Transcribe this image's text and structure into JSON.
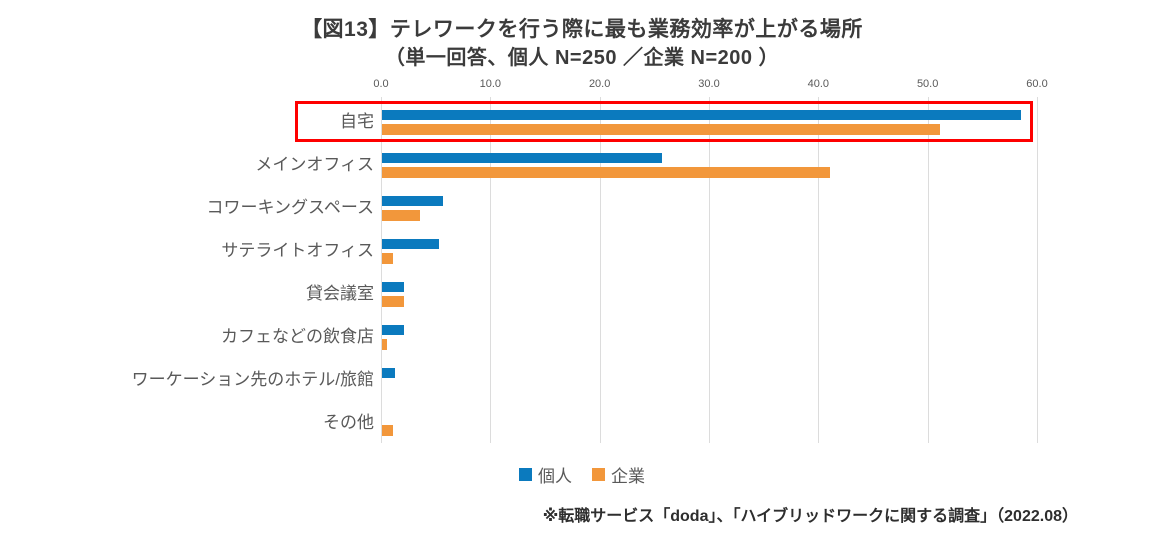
{
  "title": {
    "line1": "【図13】テレワークを行う際に最も業務効率が上がる場所",
    "line2": "（単一回答、個人 N=250 ／企業 N=200 ）"
  },
  "legend": {
    "items": [
      {
        "label": "個人",
        "color": "#0b7abe"
      },
      {
        "label": "企業",
        "color": "#f2973b"
      }
    ]
  },
  "source_note": "※転職サービス「doda」、「ハイブリッドワークに関する調査」（2022.08）",
  "colors": {
    "individual_bar": "#0b7abe",
    "company_bar": "#f2973b",
    "highlight": "#fe0000",
    "gridline": "#dcdcdc",
    "text_gray": "#595959",
    "title_text": "#3b3b3b"
  },
  "chart_data": {
    "type": "bar",
    "orientation": "horizontal",
    "title": "【図13】テレワークを行う際に最も業務効率が上がる場所（単一回答、個人 N=250 ／企業 N=200 ）",
    "categories": [
      "自宅",
      "メインオフィス",
      "コワーキングスペース",
      "サテライトオフィス",
      "貸会議室",
      "カフェなどの飲食店",
      "ワーケーション先のホテル/旅館",
      "その他"
    ],
    "series": [
      {
        "name": "個人",
        "color": "#0b7abe",
        "values": [
          58.4,
          25.6,
          5.6,
          5.2,
          2.0,
          2.0,
          1.2,
          0.0
        ]
      },
      {
        "name": "企業",
        "color": "#f2973b",
        "values": [
          51.0,
          41.0,
          3.5,
          1.0,
          2.0,
          0.5,
          0.0,
          1.0
        ]
      }
    ],
    "xlabel": "",
    "ylabel": "",
    "xlim": [
      0,
      60
    ],
    "x_ticks": [
      0,
      10,
      20,
      30,
      40,
      50,
      60
    ],
    "x_tick_labels": [
      "0.0",
      "10.0",
      "20.0",
      "30.0",
      "40.0",
      "50.0",
      "60.0"
    ],
    "grid": true,
    "tick_position": "top",
    "legend_position": "bottom",
    "annotation": {
      "type": "highlight-box",
      "target_category": "自宅",
      "color": "#fe0000"
    }
  }
}
